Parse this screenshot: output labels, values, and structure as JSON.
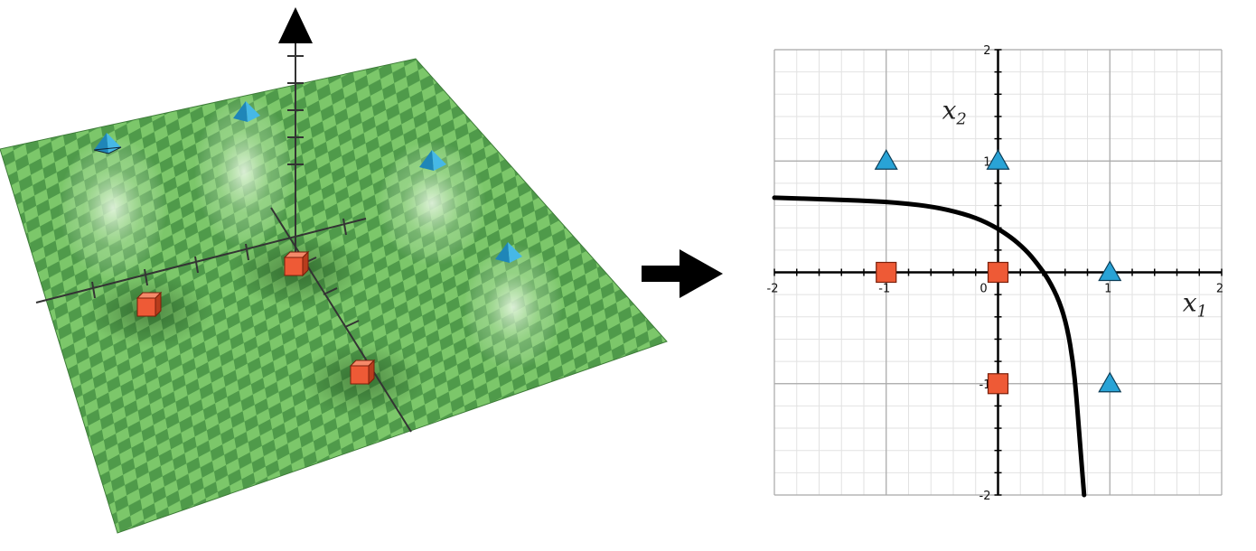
{
  "left_panel": {
    "description_icons": {
      "vertical_arrow": "up-arrow-icon",
      "class_a_marker": "pyramid-icon",
      "class_b_marker": "cube-icon"
    },
    "surface_colors": {
      "light": "#7cc76a",
      "dark": "#4f9a4a",
      "edge": "#3e7c39"
    }
  },
  "transition_arrow": {
    "icon": "right-arrow-icon",
    "color": "#000000"
  },
  "chart_data": {
    "type": "scatter",
    "xlabel": "x",
    "xlabel_sub": "1",
    "ylabel": "x",
    "ylabel_sub": "2",
    "xlim": [
      -2,
      2
    ],
    "ylim": [
      -2,
      2
    ],
    "grid": true,
    "x_ticks": [
      "-2",
      "-1",
      "0",
      "1",
      "2"
    ],
    "y_ticks": [
      "2",
      "1",
      "-1",
      "-2"
    ],
    "colors": {
      "triangle": "#29a3d6",
      "square": "#ee5a36",
      "curve": "#000000"
    },
    "series": [
      {
        "marker": "triangle",
        "points": [
          [
            -1,
            1
          ],
          [
            0,
            1
          ],
          [
            1,
            0
          ],
          [
            1,
            -1
          ]
        ]
      },
      {
        "marker": "square",
        "points": [
          [
            -1,
            0
          ],
          [
            0,
            0
          ],
          [
            0,
            -1
          ]
        ]
      }
    ],
    "curve": [
      [
        -2,
        0.67
      ],
      [
        -1.5,
        0.655
      ],
      [
        -1,
        0.635
      ],
      [
        -0.6,
        0.595
      ],
      [
        -0.3,
        0.525
      ],
      [
        -0.1,
        0.45
      ],
      [
        0.1,
        0.33
      ],
      [
        0.25,
        0.2
      ],
      [
        0.35,
        0.08
      ],
      [
        0.45,
        -0.06
      ],
      [
        0.55,
        -0.26
      ],
      [
        0.62,
        -0.5
      ],
      [
        0.67,
        -0.8
      ],
      [
        0.7,
        -1.1
      ],
      [
        0.73,
        -1.5
      ],
      [
        0.77,
        -2
      ]
    ]
  }
}
